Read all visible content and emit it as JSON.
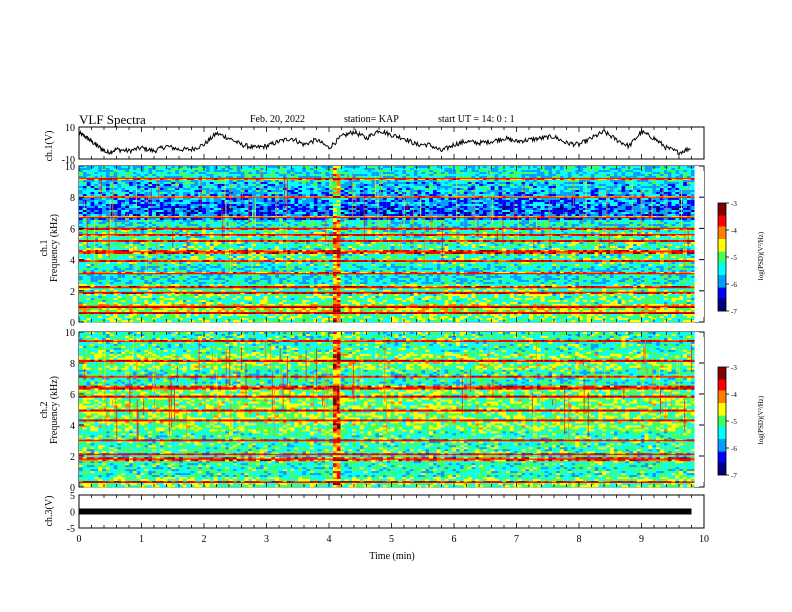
{
  "header": {
    "title": "VLF Spectra",
    "date": "Feb. 20, 2022",
    "station": "station= KAP",
    "start": "start UT =  14: 0  : 1"
  },
  "colors": {
    "background": "#ffffff",
    "axis": "#000000",
    "trace": "#000000",
    "colormap": [
      "#000080",
      "#0000ff",
      "#00a0ff",
      "#00ffff",
      "#40ff60",
      "#ffff00",
      "#ff8000",
      "#ff0000",
      "#800000",
      "#ffffff"
    ]
  },
  "chart_data": [
    {
      "type": "line",
      "ylabel": "ch.1(V)",
      "ylim": [
        -10,
        10
      ],
      "yticks": [
        "10",
        "-10"
      ],
      "xlim": [
        0,
        10
      ],
      "series": [
        {
          "x": [
            0,
            0.1,
            0.2,
            0.3,
            0.45,
            0.6,
            0.8,
            1.0,
            1.2,
            1.4,
            1.6,
            1.8,
            2.0,
            2.2,
            2.4,
            2.6,
            2.8,
            3.0,
            3.2,
            3.4,
            3.6,
            3.8,
            4.0,
            4.2,
            4.4,
            4.6,
            4.8,
            5.0,
            5.2,
            5.4,
            5.6,
            5.8,
            6.0,
            6.2,
            6.4,
            6.6,
            6.8,
            7.0,
            7.2,
            7.4,
            7.6,
            7.8,
            8.0,
            8.2,
            8.4,
            8.6,
            8.8,
            9.0,
            9.2,
            9.4,
            9.6,
            9.8
          ],
          "values": [
            6,
            4,
            1,
            -2,
            -6,
            -4,
            -5,
            -3,
            -5,
            -2,
            -4,
            -4,
            -1,
            6,
            3,
            -1,
            -3,
            -2,
            1,
            3,
            -1,
            2,
            -3,
            4,
            7,
            3,
            8,
            5,
            3,
            -1,
            -1,
            -5,
            -1,
            1,
            0,
            1,
            3,
            1,
            2,
            3,
            4,
            0,
            -1,
            3,
            7,
            2,
            -2,
            7,
            3,
            -3,
            -6,
            -3
          ]
        }
      ]
    },
    {
      "type": "heatmap",
      "channel": "ch.1",
      "ylabel": "ch.1 Frequency (kHz)",
      "ylim": [
        0,
        10
      ],
      "yticks": [
        "0",
        "2",
        "4",
        "6",
        "8",
        "10"
      ],
      "xlim": [
        0,
        10
      ],
      "colorbar": {
        "label": "log(PSD)(V²/Hz)",
        "min": -7,
        "max": -3,
        "ticks": [
          "-3",
          "-4",
          "-5",
          "-6",
          "-7"
        ]
      },
      "base_levels": [
        {
          "from": 0,
          "to": 0.5,
          "level": -5.0
        },
        {
          "from": 0.5,
          "to": 1.2,
          "level": -4.6
        },
        {
          "from": 1.2,
          "to": 2.4,
          "level": -5.1
        },
        {
          "from": 2.4,
          "to": 3.6,
          "level": -5.5
        },
        {
          "from": 3.6,
          "to": 6.0,
          "level": -5.2
        },
        {
          "from": 6.0,
          "to": 6.6,
          "level": -5.4
        },
        {
          "from": 6.6,
          "to": 7.4,
          "level": -6.1
        },
        {
          "from": 7.4,
          "to": 8.2,
          "level": -5.9
        },
        {
          "from": 8.2,
          "to": 9.0,
          "level": -5.7
        },
        {
          "from": 9.0,
          "to": 10.0,
          "level": -5.5
        }
      ],
      "lines_khz": [
        0.6,
        1.0,
        1.9,
        2.2,
        3.1,
        3.9,
        4.5,
        5.2,
        5.6,
        6.0,
        6.7,
        8.0,
        9.2
      ],
      "burst_time_min": 4.1
    },
    {
      "type": "heatmap",
      "channel": "ch.2",
      "ylabel": "ch.2 Frequency (kHz)",
      "ylim": [
        0,
        10
      ],
      "yticks": [
        "0",
        "2",
        "4",
        "6",
        "8",
        "10"
      ],
      "xlim": [
        0,
        10
      ],
      "colorbar": {
        "label": "log(PSD)(V²/Hz)",
        "min": -7,
        "max": -3,
        "ticks": [
          "-3",
          "-4",
          "-5",
          "-6",
          "-7"
        ]
      },
      "base_levels": [
        {
          "from": 0,
          "to": 0.6,
          "level": -5.0
        },
        {
          "from": 0.6,
          "to": 2.0,
          "level": -5.3
        },
        {
          "from": 2.0,
          "to": 3.6,
          "level": -5.2
        },
        {
          "from": 3.6,
          "to": 6.4,
          "level": -4.9
        },
        {
          "from": 6.4,
          "to": 7.6,
          "level": -5.3
        },
        {
          "from": 7.6,
          "to": 8.6,
          "level": -4.9
        },
        {
          "from": 8.6,
          "to": 10.0,
          "level": -5.2
        }
      ],
      "lines_khz": [
        0.3,
        1.8,
        2.1,
        3.0,
        4.3,
        4.9,
        5.8,
        6.4,
        7.1,
        8.1,
        9.4
      ],
      "burst_time_min": 4.1
    },
    {
      "type": "line",
      "ylabel": "ch.3(V)",
      "ylim": [
        -5,
        5
      ],
      "yticks": [
        "5",
        "0",
        "-5"
      ],
      "xlim": [
        0,
        10
      ],
      "xlabel": "Time (min)",
      "xticks": [
        "0",
        "1",
        "2",
        "3",
        "4",
        "5",
        "6",
        "7",
        "8",
        "9",
        "10"
      ],
      "series": [
        {
          "x": [
            0,
            9.8
          ],
          "values": [
            0,
            0
          ]
        }
      ]
    }
  ]
}
